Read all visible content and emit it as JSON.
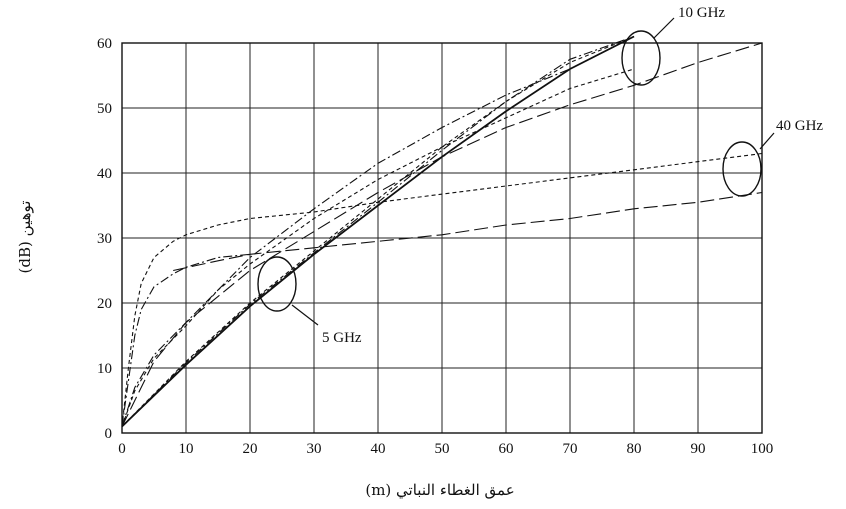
{
  "chart_data": {
    "type": "line",
    "xlabel": "عمق الغطاء النباتي (m)",
    "ylabel": "توهين (dB)",
    "xlim": [
      0,
      100
    ],
    "ylim": [
      0,
      60
    ],
    "xticks": [
      0,
      10,
      20,
      30,
      40,
      50,
      60,
      70,
      80,
      90,
      100
    ],
    "yticks": [
      0,
      10,
      20,
      30,
      40,
      50,
      60
    ],
    "grid": true,
    "annotations": [
      {
        "text": "10 GHz"
      },
      {
        "text": "40 GHz"
      },
      {
        "text": "5 GHz"
      }
    ],
    "series": [
      {
        "group": "5 GHz",
        "style": "solid",
        "x": [
          0,
          10,
          20,
          30,
          40,
          50,
          60,
          70,
          80
        ],
        "y": [
          1,
          10.5,
          19.5,
          27.5,
          35,
          42.5,
          49.5,
          56,
          61
        ]
      },
      {
        "group": "5 GHz",
        "style": "dash",
        "x": [
          0,
          10,
          20,
          30,
          40,
          50,
          60,
          70,
          80
        ],
        "y": [
          1,
          11,
          20,
          28,
          36,
          44,
          51,
          57,
          61
        ]
      },
      {
        "group": "5 GHz",
        "style": "dashdot",
        "x": [
          0,
          10,
          20,
          30,
          40,
          50,
          60,
          70,
          80
        ],
        "y": [
          1,
          10.8,
          19.8,
          27.7,
          35.5,
          43.5,
          51,
          57.5,
          61
        ]
      },
      {
        "group": "10 GHz",
        "style": "dashdot",
        "x": [
          0,
          2,
          5,
          10,
          15,
          20,
          30,
          40,
          50,
          60,
          70,
          80
        ],
        "y": [
          1,
          7,
          12,
          17,
          22,
          27,
          34.5,
          41.5,
          47,
          52,
          56,
          61
        ]
      },
      {
        "group": "10 GHz",
        "style": "dash",
        "x": [
          0,
          2,
          5,
          10,
          15,
          20,
          30,
          40,
          50,
          60,
          70,
          80
        ],
        "y": [
          1,
          6.5,
          11.5,
          16.5,
          22,
          26,
          33,
          39,
          44,
          48.5,
          53,
          56
        ]
      },
      {
        "group": "10 GHz",
        "style": "longdash",
        "x": [
          0,
          5,
          10,
          20,
          30,
          40,
          50,
          60,
          70,
          80,
          90,
          100
        ],
        "y": [
          1,
          11,
          17,
          25,
          31,
          37,
          42.5,
          47,
          50.5,
          53.5,
          57,
          60
        ]
      },
      {
        "group": "40 GHz",
        "style": "dash",
        "x": [
          0,
          1,
          2,
          3,
          5,
          8,
          10,
          15,
          20,
          30,
          40,
          60,
          80,
          100
        ],
        "y": [
          1,
          10,
          18,
          23,
          27,
          29.5,
          30.5,
          32,
          33,
          34,
          35.5,
          38,
          40.5,
          43
        ]
      },
      {
        "group": "40 GHz",
        "style": "dashdot",
        "x": [
          0,
          1,
          2,
          3,
          5,
          8,
          10,
          15,
          20
        ],
        "y": [
          1,
          8,
          15,
          19,
          22.5,
          24.5,
          25.5,
          27,
          27.5
        ]
      },
      {
        "group": "40 GHz",
        "style": "longdash",
        "x": [
          8,
          15,
          20,
          30,
          40,
          50,
          60,
          70,
          80,
          90,
          100
        ],
        "y": [
          25,
          26.5,
          27.5,
          28.5,
          29.5,
          30.5,
          32,
          33,
          34.5,
          35.5,
          37
        ]
      }
    ]
  }
}
